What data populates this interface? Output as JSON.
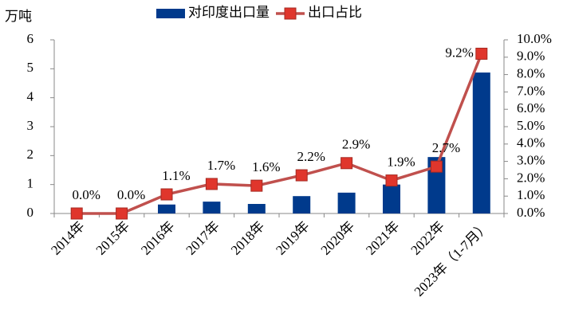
{
  "chart_data": {
    "type": "bar_line",
    "y_axis_label": "万吨",
    "categories": [
      "2014年",
      "2015年",
      "2016年",
      "2017年",
      "2018年",
      "2019年",
      "2020年",
      "2021年",
      "2022年",
      "2023年（1-7月）"
    ],
    "series": [
      {
        "name": "对印度出口量",
        "type": "bar",
        "color": "#003a8c",
        "values": [
          0,
          0,
          0.31,
          0.41,
          0.33,
          0.6,
          0.72,
          1.0,
          1.95,
          4.87
        ]
      },
      {
        "name": "出口占比",
        "type": "line",
        "axis": "y2",
        "color": "#c0504d",
        "marker_color": "#e0362c",
        "values": [
          0.0,
          0.0,
          1.1,
          1.7,
          1.6,
          2.2,
          2.9,
          1.9,
          2.7,
          9.2
        ],
        "value_labels": [
          "0.0%",
          "0.0%",
          "1.1%",
          "1.7%",
          "1.6%",
          "2.2%",
          "2.9%",
          "1.9%",
          "2.7%",
          "9.2%"
        ]
      }
    ],
    "ylim": [
      0,
      6
    ],
    "yticks": [
      0,
      1,
      2,
      3,
      4,
      5,
      6
    ],
    "y2lim": [
      0,
      10
    ],
    "y2ticks": [
      {
        "value": 0,
        "label": "0.0%"
      },
      {
        "value": 1,
        "label": "1.0%"
      },
      {
        "value": 2,
        "label": "2.0%"
      },
      {
        "value": 3,
        "label": "3.0%"
      },
      {
        "value": 4,
        "label": "4.0%"
      },
      {
        "value": 5,
        "label": "5.0%"
      },
      {
        "value": 6,
        "label": "6.0%"
      },
      {
        "value": 7,
        "label": "7.0%"
      },
      {
        "value": 8,
        "label": "8.0%"
      },
      {
        "value": 9,
        "label": "9.0%"
      },
      {
        "value": 10,
        "label": "10.0%"
      }
    ],
    "legend": "top"
  }
}
